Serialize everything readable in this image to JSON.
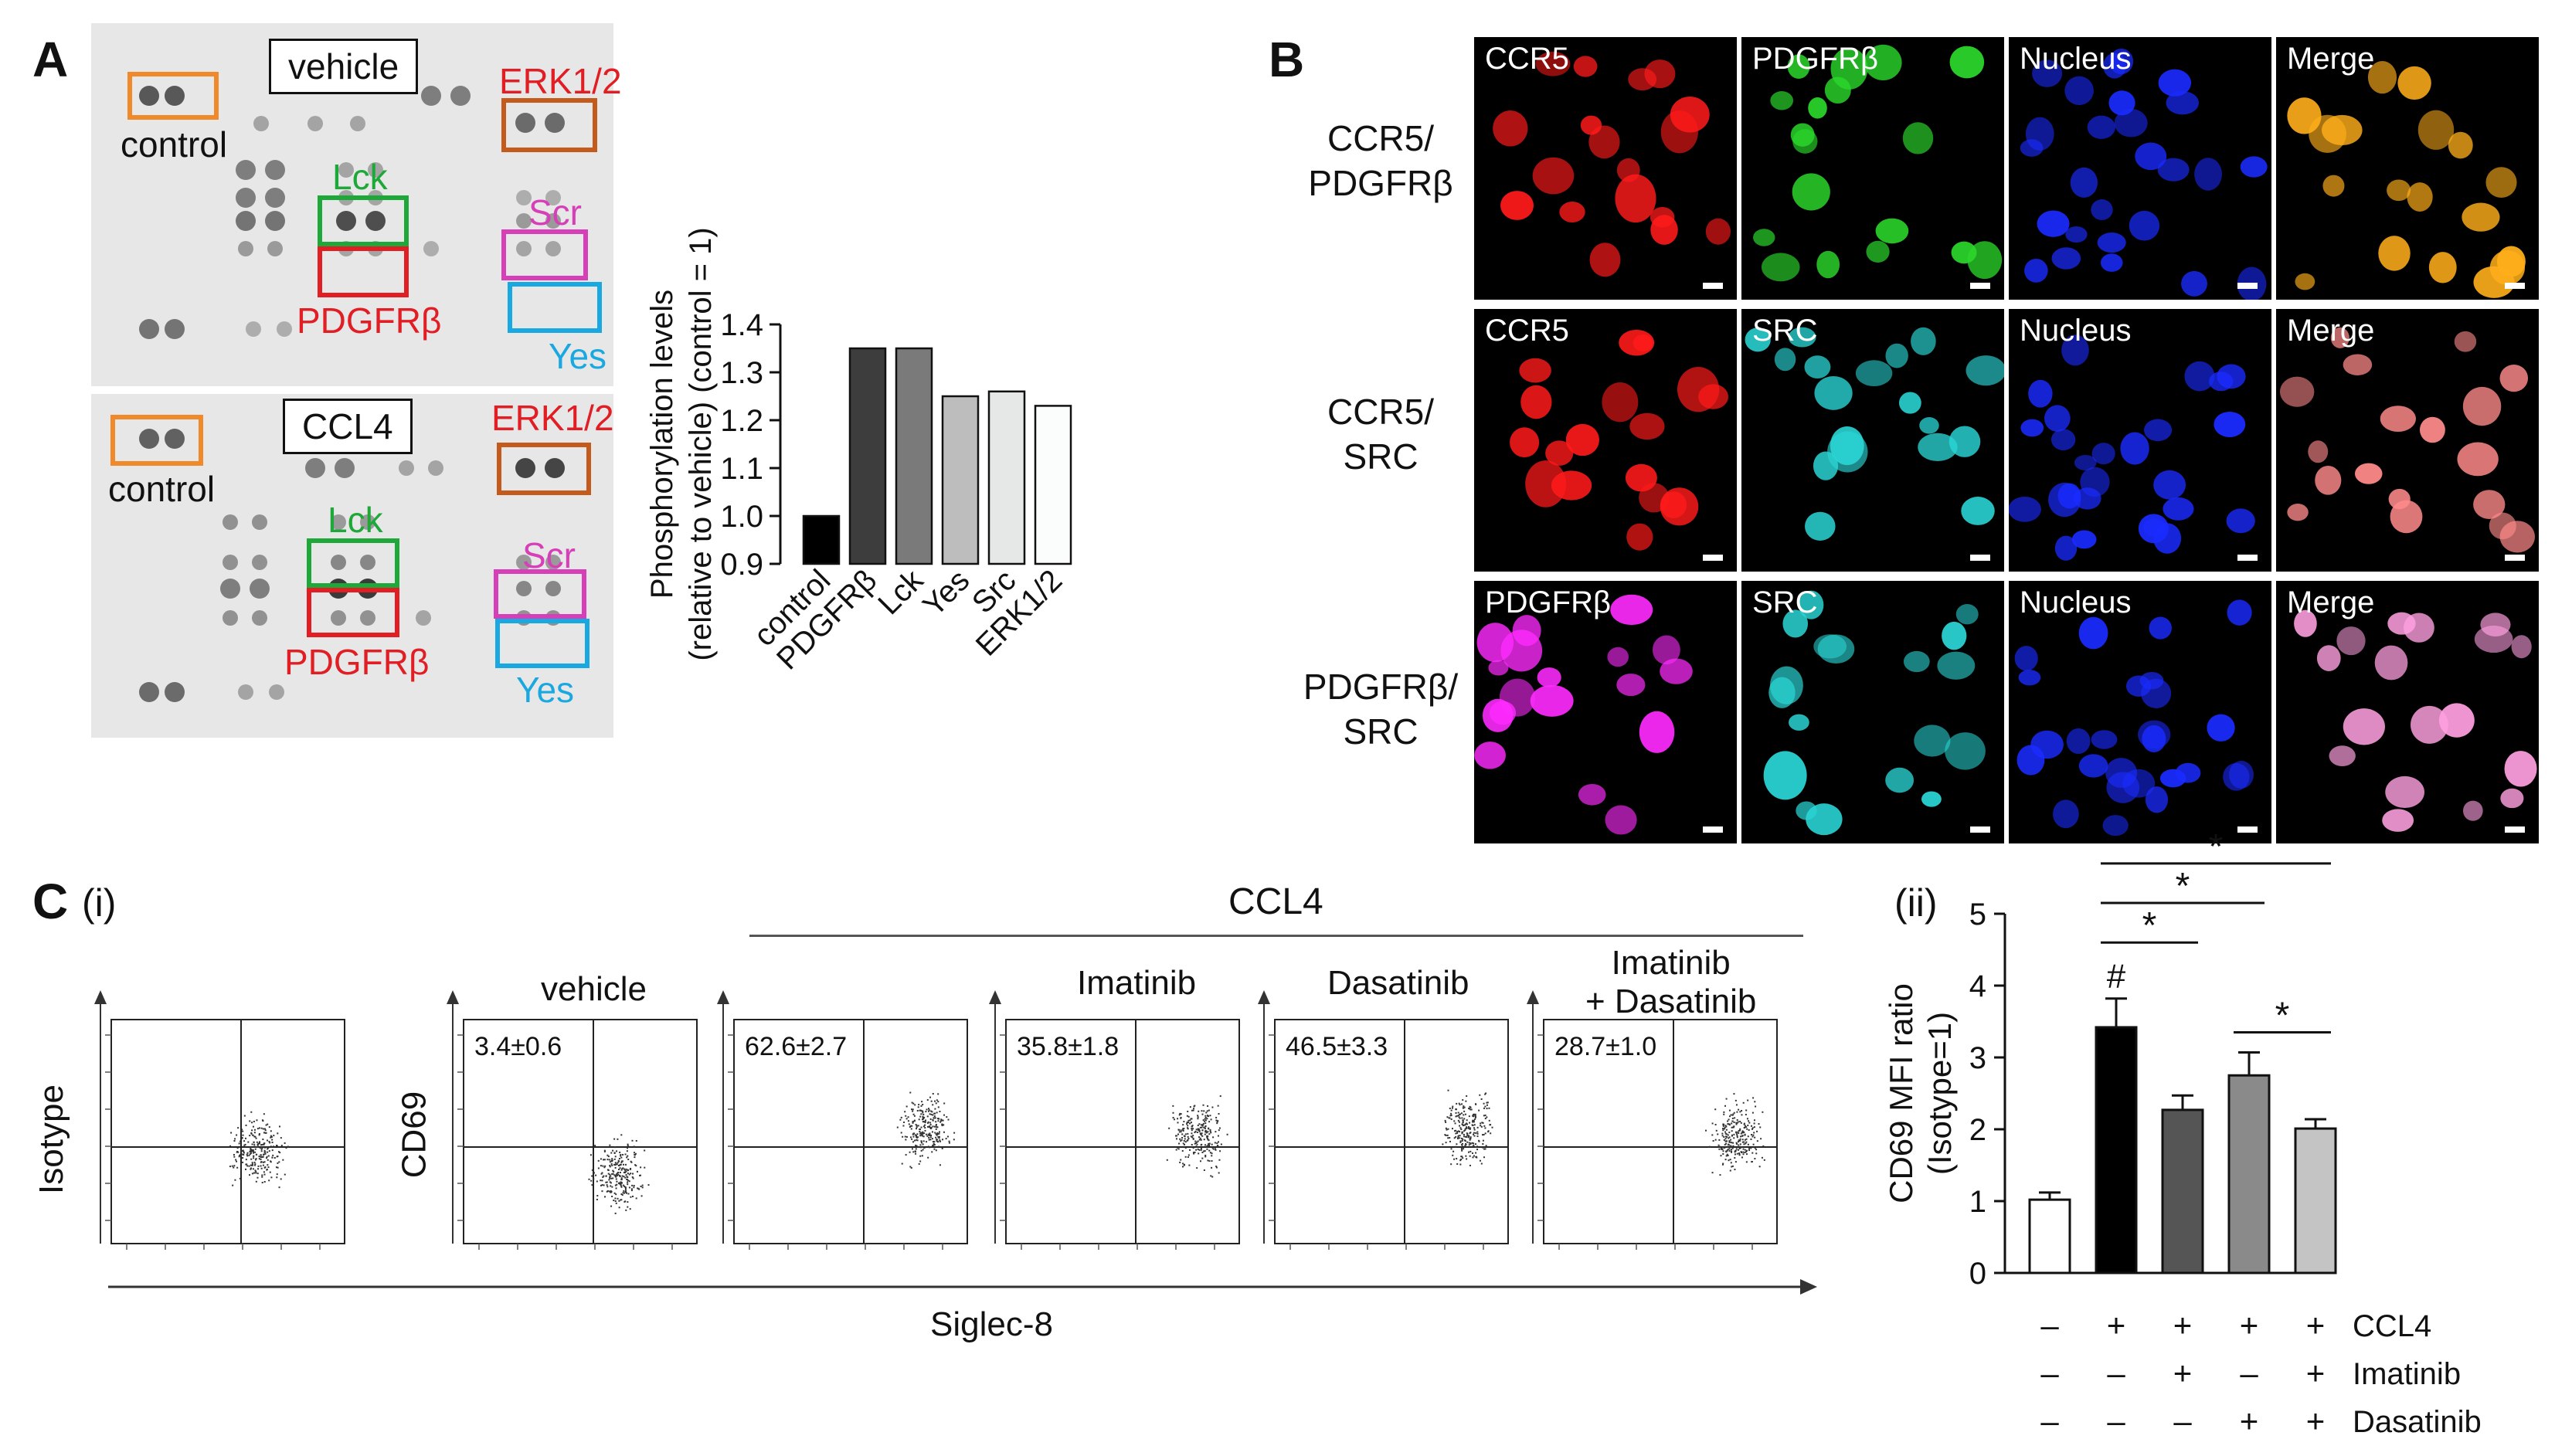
{
  "panel_a": {
    "letter": "A",
    "vehicle_label": "vehicle",
    "ccl4_label": "CCL4",
    "spot_labels": {
      "control": "control",
      "erk": "ERK1/2",
      "lck": "Lck",
      "scr": "Scr",
      "pdgfrb": "PDGFRβ",
      "yes": "Yes"
    },
    "label_colors": {
      "control": "#f0892a",
      "erk": "#c45a1c",
      "lck": "#1ea83a",
      "scr": "#d63fb8",
      "pdgfrb": "#e01e24",
      "yes": "#19a8e0"
    }
  },
  "chart_data": [
    {
      "type": "bar",
      "categories": [
        "control",
        "PDGFRβ",
        "Lck",
        "Yes",
        "Src",
        "ERK1/2"
      ],
      "values": [
        1.0,
        1.35,
        1.35,
        1.25,
        1.26,
        1.23
      ],
      "colors": [
        "#000000",
        "#3d3d3d",
        "#7a7a7a",
        "#bdbdbd",
        "#e6e8e8",
        "#fbfdfd"
      ],
      "ylabel": [
        "Phosphorylation levels",
        "(relative to vehicle) (control = 1)"
      ],
      "ylim": [
        0.9,
        1.4
      ],
      "yticks": [
        "0.9",
        "1.0",
        "1.1",
        "1.2",
        "1.3",
        "1.4"
      ]
    },
    {
      "type": "bar",
      "ylabel": [
        "CD69 MFI ratio",
        "(Isotype=1)"
      ],
      "ylim": [
        0,
        5
      ],
      "yticks": [
        "0",
        "1",
        "2",
        "3",
        "4",
        "5"
      ],
      "values": [
        1.02,
        3.42,
        2.27,
        2.75,
        2.01
      ],
      "errors": [
        0.1,
        0.4,
        0.2,
        0.32,
        0.13
      ],
      "colors": [
        "#ffffff",
        "#000000",
        "#555555",
        "#8a8a8a",
        "#c4c4c4"
      ],
      "annotation": "#",
      "significance_marker": "*",
      "conditions": [
        {
          "label": "CCL4",
          "signs": [
            "–",
            "+",
            "+",
            "+",
            "+"
          ]
        },
        {
          "label": "Imatinib",
          "signs": [
            "–",
            "–",
            "+",
            "–",
            "+"
          ]
        },
        {
          "label": "Dasatinib",
          "signs": [
            "–",
            "–",
            "–",
            "+",
            "+"
          ]
        }
      ]
    }
  ],
  "panel_b": {
    "letter": "B",
    "rows": [
      {
        "label": [
          "CCR5/",
          "PDGFRβ"
        ],
        "channels": [
          "CCR5",
          "PDGFRβ",
          "Nucleus",
          "Merge"
        ],
        "colors": [
          "#ff1a1a",
          "#2bd62b",
          "#1a2bff",
          "#ffae1a"
        ]
      },
      {
        "label": [
          "CCR5/",
          "SRC"
        ],
        "channels": [
          "CCR5",
          "SRC",
          "Nucleus",
          "Merge"
        ],
        "colors": [
          "#ff1a1a",
          "#2bd6d6",
          "#1a2bff",
          "#ff8a8a"
        ]
      },
      {
        "label": [
          "PDGFRβ/",
          "SRC"
        ],
        "channels": [
          "PDGFRβ",
          "SRC",
          "Nucleus",
          "Merge"
        ],
        "colors": [
          "#ff2bff",
          "#2bd6d6",
          "#1a2bff",
          "#ffa0e0"
        ]
      }
    ]
  },
  "panel_c": {
    "letter": "C",
    "sub_i": "(i)",
    "sub_ii": "(ii)",
    "ccl4_group": "CCL4",
    "x_axis": "Siglec-8",
    "y_isotype": "Isotype",
    "y_cd69": "CD69",
    "plots": [
      {
        "title": "",
        "pct": ""
      },
      {
        "title": "vehicle",
        "pct": "3.4±0.6"
      },
      {
        "title": "",
        "pct": "62.6±2.7"
      },
      {
        "title": "Imatinib",
        "pct": "35.8±1.8"
      },
      {
        "title": "Dasatinib",
        "pct": "46.5±3.3"
      },
      {
        "title": "Imatinib\n+ Dasatinib",
        "pct": "28.7±1.0"
      }
    ],
    "plot_titles": {
      "vehicle": "vehicle",
      "imatinib": "Imatinib",
      "dasatinib": "Dasatinib",
      "combo_1": "Imatinib",
      "combo_2": "+ Dasatinib"
    }
  }
}
